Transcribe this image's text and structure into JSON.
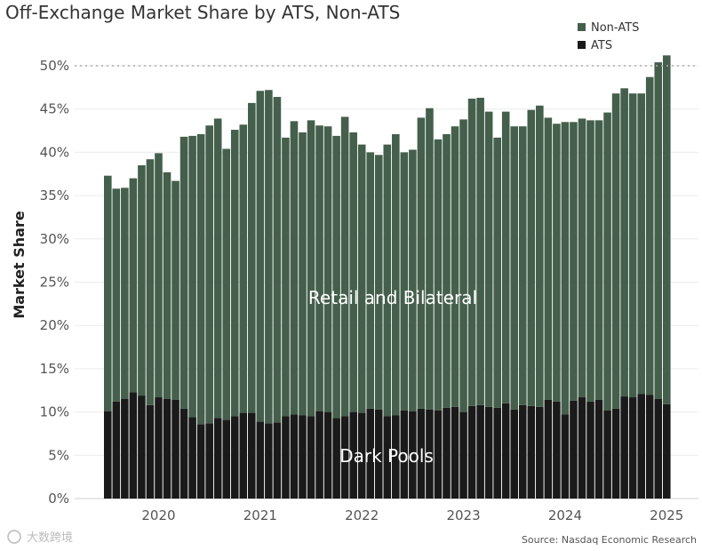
{
  "chart_data": {
    "type": "bar",
    "stacked": true,
    "title": "Off-Exchange Market Share by ATS, Non-ATS",
    "ylabel": "Market Share",
    "xlabel": "",
    "ylim": [
      0,
      0.5
    ],
    "yticks": [
      "0%",
      "5%",
      "10%",
      "15%",
      "20%",
      "25%",
      "30%",
      "35%",
      "40%",
      "45%",
      "50%"
    ],
    "year_labels": [
      "2020",
      "2021",
      "2022",
      "2023",
      "2024",
      "2025"
    ],
    "reference_line": 0.5,
    "legend": {
      "position": "top-right",
      "items": [
        "Non-ATS",
        "ATS"
      ]
    },
    "annotations": [
      "Retail and Bilateral",
      "Dark Pools"
    ],
    "source": "Source: Nasdaq Economic Research",
    "watermark": "大数跨境",
    "colors": {
      "Non-ATS": "#445f4b",
      "ATS": "#1a1a1a",
      "grid": "#ececec",
      "refline": "#aaaaaa"
    },
    "x": [
      "2019-07",
      "2019-08",
      "2019-09",
      "2019-10",
      "2019-11",
      "2019-12",
      "2020-01",
      "2020-02",
      "2020-03",
      "2020-04",
      "2020-05",
      "2020-06",
      "2020-07",
      "2020-08",
      "2020-09",
      "2020-10",
      "2020-11",
      "2020-12",
      "2021-01",
      "2021-02",
      "2021-03",
      "2021-04",
      "2021-05",
      "2021-06",
      "2021-07",
      "2021-08",
      "2021-09",
      "2021-10",
      "2021-11",
      "2021-12",
      "2022-01",
      "2022-02",
      "2022-03",
      "2022-04",
      "2022-05",
      "2022-06",
      "2022-07",
      "2022-08",
      "2022-09",
      "2022-10",
      "2022-11",
      "2022-12",
      "2023-01",
      "2023-02",
      "2023-03",
      "2023-04",
      "2023-05",
      "2023-06",
      "2023-07",
      "2023-08",
      "2023-09",
      "2023-10",
      "2023-11",
      "2023-12",
      "2024-01",
      "2024-02",
      "2024-03",
      "2024-04",
      "2024-05",
      "2024-06",
      "2024-07",
      "2024-08",
      "2024-09",
      "2024-10",
      "2024-11",
      "2024-12",
      "2025-01"
    ],
    "series": [
      {
        "name": "ATS",
        "values": [
          0.101,
          0.112,
          0.115,
          0.123,
          0.119,
          0.108,
          0.117,
          0.115,
          0.114,
          0.104,
          0.094,
          0.086,
          0.087,
          0.093,
          0.091,
          0.095,
          0.099,
          0.099,
          0.089,
          0.087,
          0.088,
          0.095,
          0.097,
          0.096,
          0.095,
          0.101,
          0.1,
          0.093,
          0.095,
          0.1,
          0.099,
          0.104,
          0.103,
          0.095,
          0.096,
          0.102,
          0.101,
          0.104,
          0.103,
          0.102,
          0.105,
          0.106,
          0.1,
          0.107,
          0.108,
          0.106,
          0.105,
          0.11,
          0.103,
          0.108,
          0.107,
          0.106,
          0.114,
          0.112,
          0.097,
          0.113,
          0.117,
          0.112,
          0.114,
          0.102,
          0.104,
          0.118,
          0.117,
          0.121,
          0.12,
          0.115,
          0.109
        ]
      },
      {
        "name": "Non-ATS",
        "values": [
          0.272,
          0.246,
          0.244,
          0.247,
          0.266,
          0.284,
          0.282,
          0.262,
          0.253,
          0.314,
          0.325,
          0.335,
          0.344,
          0.346,
          0.313,
          0.331,
          0.333,
          0.358,
          0.382,
          0.385,
          0.376,
          0.322,
          0.339,
          0.327,
          0.342,
          0.33,
          0.33,
          0.326,
          0.346,
          0.323,
          0.31,
          0.296,
          0.294,
          0.314,
          0.325,
          0.298,
          0.302,
          0.336,
          0.348,
          0.313,
          0.316,
          0.324,
          0.338,
          0.355,
          0.355,
          0.341,
          0.312,
          0.337,
          0.327,
          0.322,
          0.342,
          0.348,
          0.326,
          0.321,
          0.338,
          0.322,
          0.322,
          0.325,
          0.323,
          0.344,
          0.364,
          0.356,
          0.351,
          0.347,
          0.367,
          0.389,
          0.403
        ]
      }
    ]
  }
}
